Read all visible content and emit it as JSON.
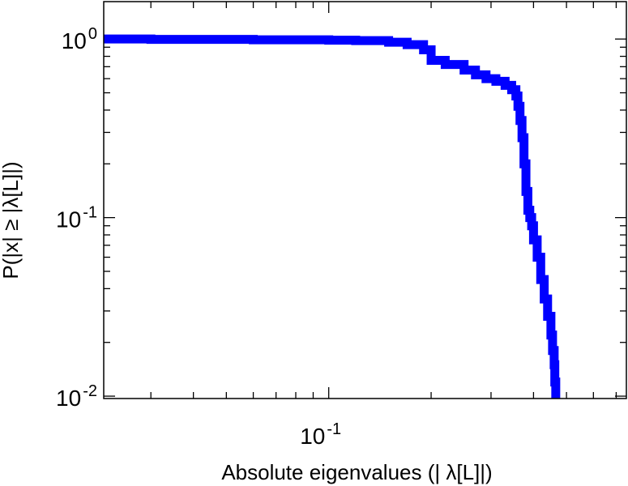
{
  "chart_data": {
    "type": "line",
    "title": "",
    "xlabel": "Absolute eigenvalues (|     λ[L]|)",
    "ylabel": "P(|x| ≥ |λ[L]|)",
    "x_scale": "log",
    "y_scale": "log",
    "xlim": [
      0.0218,
      0.75
    ],
    "ylim": [
      0.0097,
      1.62
    ],
    "x_tick_labels": [
      {
        "base": "10",
        "exp": "-1",
        "value": 0.1
      }
    ],
    "y_tick_labels": [
      {
        "base": "10",
        "exp": "0",
        "value": 1
      },
      {
        "base": "10",
        "exp": "-1",
        "value": 0.1
      },
      {
        "base": "10",
        "exp": "-2",
        "value": 0.01
      }
    ],
    "x_minor_ticks": [
      0.03,
      0.04,
      0.05,
      0.06,
      0.07,
      0.08,
      0.09,
      0.2,
      0.3,
      0.4,
      0.5,
      0.6,
      0.7
    ],
    "y_minor_ticks": [
      0.02,
      0.03,
      0.04,
      0.05,
      0.06,
      0.07,
      0.08,
      0.09,
      0.2,
      0.3,
      0.4,
      0.5,
      0.6,
      0.7,
      0.8,
      0.9
    ],
    "grid": false,
    "series": [
      {
        "color": "#0000ff",
        "x": [
          0.0218,
          0.03,
          0.06,
          0.1,
          0.12,
          0.15,
          0.17,
          0.19,
          0.2,
          0.22,
          0.25,
          0.27,
          0.29,
          0.31,
          0.33,
          0.345,
          0.355,
          0.36,
          0.365,
          0.37,
          0.375,
          0.38,
          0.385,
          0.39,
          0.395,
          0.4,
          0.41,
          0.42,
          0.43,
          0.44,
          0.45,
          0.455,
          0.46,
          0.462,
          0.465
        ],
        "y": [
          1.0,
          0.995,
          0.99,
          0.985,
          0.98,
          0.96,
          0.93,
          0.87,
          0.76,
          0.72,
          0.67,
          0.63,
          0.6,
          0.58,
          0.55,
          0.52,
          0.48,
          0.42,
          0.35,
          0.28,
          0.2,
          0.14,
          0.11,
          0.1,
          0.09,
          0.075,
          0.06,
          0.045,
          0.035,
          0.028,
          0.022,
          0.018,
          0.015,
          0.012,
          0.0097
        ]
      }
    ]
  }
}
